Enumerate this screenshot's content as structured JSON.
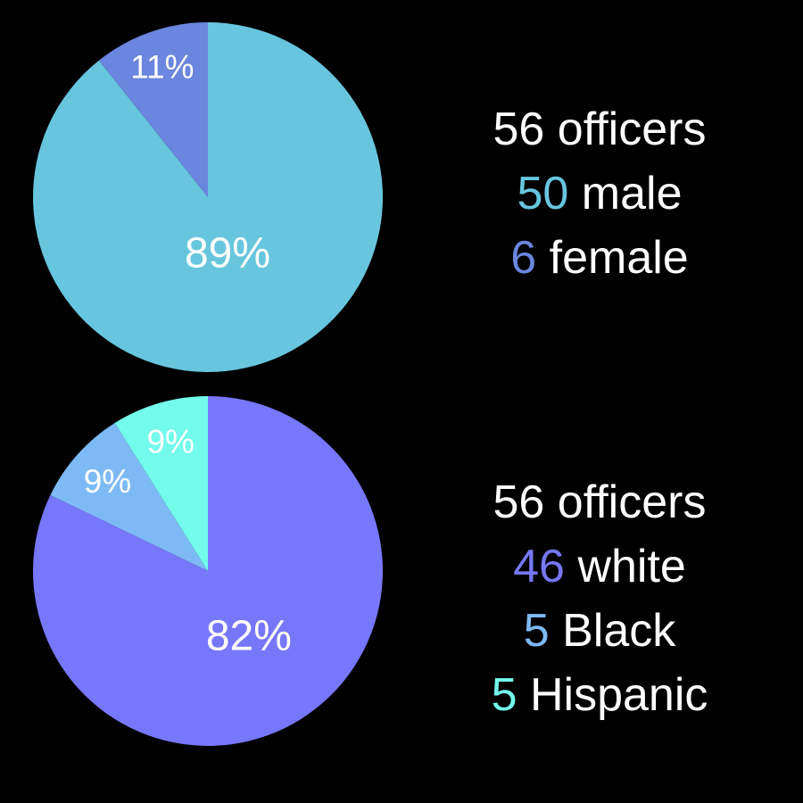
{
  "chart_data": [
    {
      "type": "pie",
      "slices": [
        {
          "label": "male",
          "count": 50,
          "percent": 89,
          "percent_label": "89%",
          "color": "#67C6DE"
        },
        {
          "label": "female",
          "count": 6,
          "percent": 11,
          "percent_label": "11%",
          "color": "#6A86DE"
        }
      ],
      "legend": {
        "total_line": "56 officers",
        "rows": [
          {
            "count": "50",
            "label": "male",
            "count_color": "#67C6DE"
          },
          {
            "count": "6",
            "label": "female",
            "count_color": "#6A86DE"
          }
        ]
      }
    },
    {
      "type": "pie",
      "slices": [
        {
          "label": "white",
          "count": 46,
          "percent": 82,
          "percent_label": "82%",
          "color": "#7777FB"
        },
        {
          "label": "Black",
          "count": 5,
          "percent": 9,
          "percent_label": "9%",
          "color": "#7DBAF5"
        },
        {
          "label": "Hispanic",
          "count": 5,
          "percent": 9,
          "percent_label": "9%",
          "color": "#73FCEC"
        }
      ],
      "legend": {
        "total_line": "56 officers",
        "rows": [
          {
            "count": "46",
            "label": "white",
            "count_color": "#7777FB"
          },
          {
            "count": "5",
            "label": "Black",
            "count_color": "#7DBAF5"
          },
          {
            "count": "5",
            "label": "Hispanic",
            "count_color": "#73FCEC"
          }
        ]
      }
    }
  ]
}
